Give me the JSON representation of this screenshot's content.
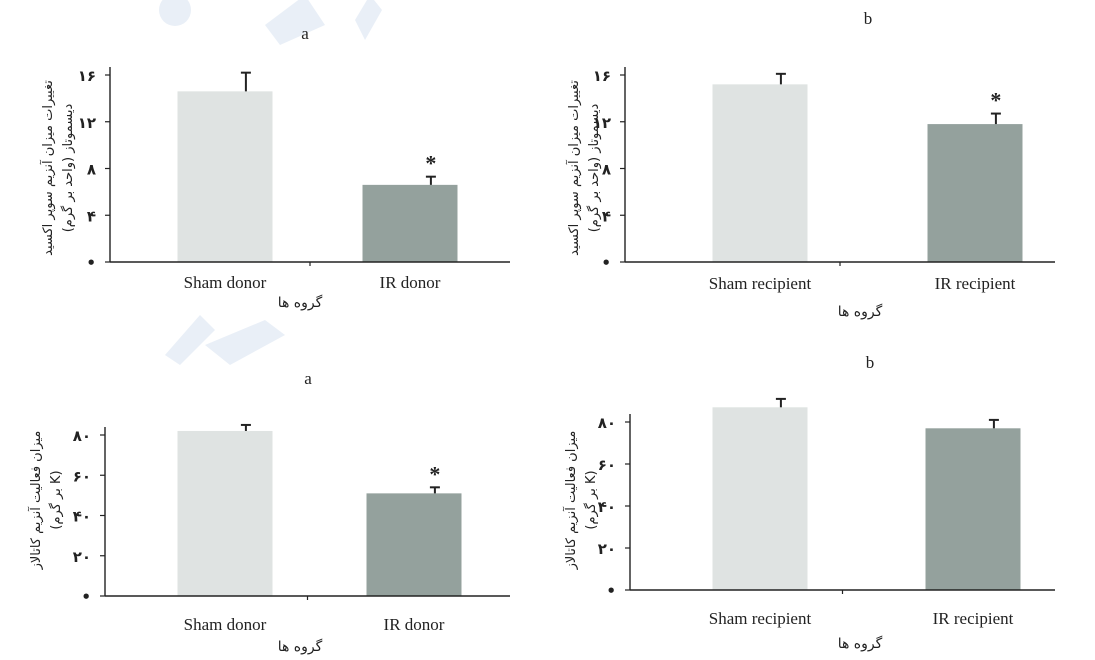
{
  "figure": {
    "colors": {
      "sham": "#dfe3e2",
      "ir": "#94a19d",
      "axis": "#222222",
      "error": "#222222",
      "watermark": "#e9eff7"
    },
    "watermark": "logo-watermark"
  },
  "chart_data": [
    {
      "type": "bar",
      "title": "a",
      "categories": [
        "Sham donor",
        "IR donor"
      ],
      "values": [
        14.6,
        6.6
      ],
      "errors": [
        1.6,
        0.7
      ],
      "annotations": [
        "",
        "*"
      ],
      "ylim": [
        0,
        16
      ],
      "yticks": [
        0,
        4,
        8,
        12,
        16
      ],
      "yticklabels": [
        "•",
        "۴",
        "۸",
        "۱۲",
        "۱۶"
      ],
      "xlabel": "گروه ها",
      "ylabel": [
        "تغییرات میزان آنزیم سوپر اکسید",
        "دیسموتاز (واحد بر گرم)"
      ]
    },
    {
      "type": "bar",
      "title": "b",
      "categories": [
        "Sham recipient",
        "IR recipient"
      ],
      "values": [
        15.2,
        11.8
      ],
      "errors": [
        0.9,
        0.9
      ],
      "annotations": [
        "",
        "*"
      ],
      "ylim": [
        0,
        16
      ],
      "yticks": [
        0,
        4,
        8,
        12,
        16
      ],
      "yticklabels": [
        "•",
        "۴",
        "۸",
        "۱۲",
        "۱۶"
      ],
      "xlabel": "گروه ها",
      "ylabel": [
        "تغییرات میزان آنزیم سوپر اکسید",
        "دیسموتاز (واحد بر گرم)"
      ]
    },
    {
      "type": "bar",
      "title": "a",
      "categories": [
        "Sham donor",
        "IR donor"
      ],
      "values": [
        82,
        51
      ],
      "errors": [
        3,
        3
      ],
      "annotations": [
        "",
        "*"
      ],
      "ylim": [
        0,
        80
      ],
      "yticks": [
        0,
        20,
        40,
        60,
        80
      ],
      "yticklabels": [
        "•",
        "۲۰",
        "۴۰",
        "۶۰",
        "۸۰"
      ],
      "xlabel": "گروه ها",
      "ylabel": [
        "میزان فعالیت آنزیم کاتالاز",
        "(K بر گرم)"
      ]
    },
    {
      "type": "bar",
      "title": "b",
      "categories": [
        "Sham recipient",
        "IR recipient"
      ],
      "values": [
        87,
        77
      ],
      "errors": [
        4,
        4
      ],
      "annotations": [
        "",
        ""
      ],
      "ylim": [
        0,
        80
      ],
      "yticks": [
        0,
        20,
        40,
        60,
        80
      ],
      "yticklabels": [
        "•",
        "۲۰",
        "۴۰",
        "۶۰",
        "۸۰"
      ],
      "xlabel": "گروه ها",
      "ylabel": [
        "میزان فعالیت آنزیم کاتالاز",
        "(K بر گرم)"
      ]
    }
  ]
}
